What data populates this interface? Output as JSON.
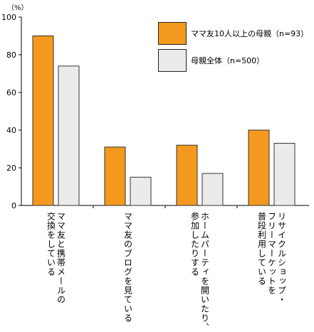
{
  "chart_data": {
    "type": "bar",
    "unit": "（%）",
    "categories": [
      [
        "ママ友と携帯メールの",
        "交換をしている"
      ],
      [
        "ママ友のブログを見ている"
      ],
      [
        "ホームパーティを開いたり、",
        "参加したりする"
      ],
      [
        "リサイクルショップ・",
        "フリーマーケットを",
        "普段利用している"
      ]
    ],
    "series": [
      {
        "name": "ママ友10人以上の母親（n=93）",
        "values": [
          90,
          31,
          32,
          40
        ],
        "color": "#f39a1e"
      },
      {
        "name": "母親全体（n=500）",
        "values": [
          74,
          15,
          17,
          33
        ],
        "color": "#ebebeb"
      }
    ],
    "ylim": [
      0,
      100
    ],
    "yticks": [
      0,
      20,
      40,
      60,
      80,
      100
    ],
    "legend_position": "top-right",
    "grid": false
  }
}
